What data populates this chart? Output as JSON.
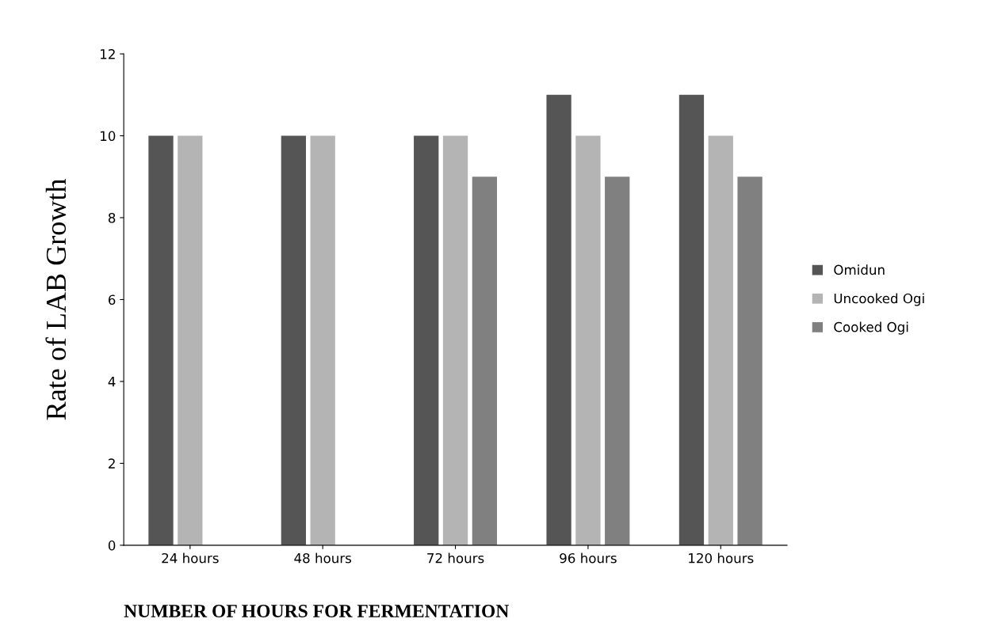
{
  "chart_data": {
    "type": "bar",
    "xlabel": "NUMBER OF HOURS FOR FERMENTATION",
    "ylabel": "Rate of LAB Growth",
    "categories": [
      "24 hours",
      "48 hours",
      "72 hours",
      "96 hours",
      "120 hours"
    ],
    "series": [
      {
        "name": "Omidun",
        "color": "#555555",
        "values": [
          10,
          10,
          10,
          11,
          11
        ]
      },
      {
        "name": "Uncooked Ogi",
        "color": "#b4b4b4",
        "values": [
          10,
          10,
          10,
          10,
          10
        ]
      },
      {
        "name": "Cooked Ogi",
        "color": "#808080",
        "values": [
          0,
          0,
          9,
          9,
          9
        ]
      }
    ],
    "ylim": [
      0,
      12
    ],
    "yticks": [
      0,
      2,
      4,
      6,
      8,
      10,
      12
    ],
    "grid": false,
    "legend": "right"
  }
}
